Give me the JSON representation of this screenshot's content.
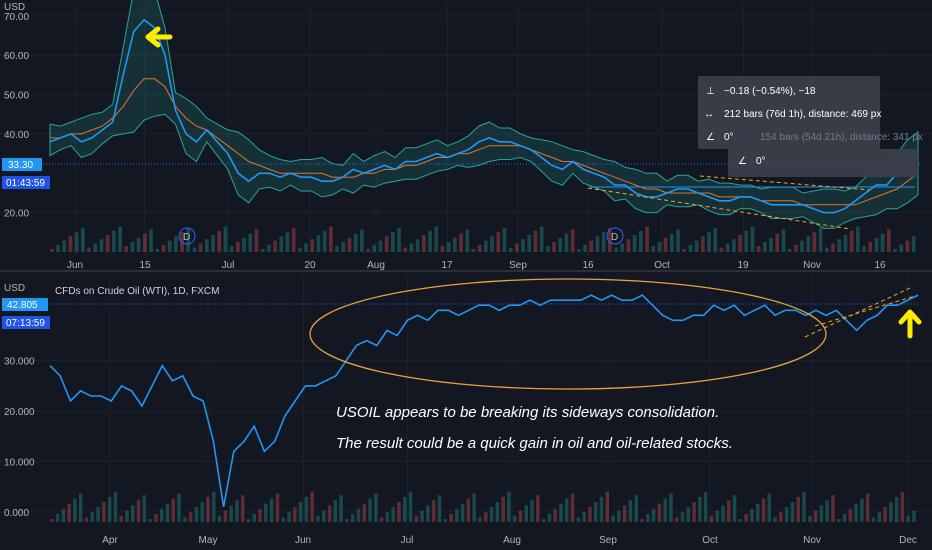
{
  "chart_data": [
    {
      "type": "line",
      "currency_label": "USD",
      "y_ticks": [
        "70.00",
        "60.00",
        "50.00",
        "40.00",
        "20.00"
      ],
      "ylim": [
        10,
        72
      ],
      "x_ticks": [
        "Jun",
        "15",
        "Jul",
        "20",
        "Aug",
        "17",
        "Sep",
        "16",
        "Oct",
        "19",
        "Nov",
        "16"
      ],
      "price_tag": "33.30",
      "countdown_tag": "01:43:59",
      "dividend_markers": [
        "D",
        "D"
      ],
      "series": [
        {
          "values": [
            38,
            39,
            40,
            38,
            39,
            41,
            43,
            55,
            66,
            69,
            67,
            60,
            46,
            40,
            38,
            41,
            38,
            35,
            30,
            28,
            30,
            30,
            29,
            30,
            29,
            29,
            28,
            28,
            29,
            31,
            30,
            31,
            32,
            31,
            33,
            33,
            34,
            35,
            34,
            35,
            36,
            38,
            39,
            38,
            38,
            37,
            36,
            34,
            32,
            31,
            33,
            31,
            30,
            29,
            27,
            27,
            25,
            24,
            24,
            25,
            26,
            26,
            25,
            24,
            23,
            23,
            24,
            24,
            23,
            22,
            22,
            22,
            22,
            21,
            20,
            20,
            21,
            23,
            25,
            27,
            27,
            30,
            33,
            35
          ]
        },
        {
          "values": [
            39,
            39,
            40,
            40,
            41,
            42,
            44,
            47,
            51,
            54,
            54,
            52,
            47,
            44,
            42,
            41,
            39,
            37,
            35,
            33,
            32,
            31,
            30,
            30,
            30,
            30,
            30,
            29,
            29,
            29,
            30,
            30,
            31,
            31,
            32,
            32,
            33,
            34,
            34,
            35,
            35,
            36,
            37,
            37,
            37,
            37,
            36,
            35,
            34,
            33,
            33,
            32,
            31,
            30,
            29,
            28,
            27,
            26,
            26,
            25,
            25,
            25,
            25,
            25,
            24,
            24,
            24,
            24,
            23,
            23,
            23,
            23,
            22,
            22,
            22,
            22,
            22,
            22,
            23,
            24,
            25,
            26,
            28,
            30
          ]
        }
      ],
      "annotations": {
        "measure_price": "−0.18 (−0.54%), −18",
        "measure_bars": "212 bars (76d 1h), distance: 469 px",
        "measure_angle": "0°",
        "measure_bars2": "154 bars (54d 21h), distance: 341 px",
        "measure_angle2": "0°"
      }
    },
    {
      "type": "line",
      "title": "CFDs on Crude Oil (WTI), 1D, FXCM",
      "currency_label": "USD",
      "y_ticks": [
        "30.000",
        "20.000",
        "10.000",
        "0.000"
      ],
      "ylim": [
        -2,
        46
      ],
      "x_ticks": [
        "Apr",
        "May",
        "Jun",
        "Jul",
        "Aug",
        "Sep",
        "Oct",
        "Nov",
        "Dec"
      ],
      "price_tag": "42.805",
      "countdown_tag": "07:13:59",
      "series": [
        {
          "values": [
            29,
            27,
            22,
            24,
            23,
            23,
            22,
            25,
            24,
            21,
            25,
            29,
            26,
            27,
            23,
            22,
            14,
            1,
            12,
            14,
            17,
            12,
            14,
            19,
            22,
            25,
            25,
            26,
            27,
            30,
            33,
            34,
            33,
            36,
            35,
            38,
            39,
            38,
            40,
            40,
            39,
            40,
            41,
            41,
            40,
            41,
            41,
            42,
            41,
            42,
            42,
            42,
            42,
            43,
            42,
            43,
            42,
            42,
            43,
            41,
            39,
            38,
            38,
            39,
            39,
            41,
            40,
            41,
            39,
            40,
            41,
            39,
            40,
            40,
            39,
            40,
            39,
            40,
            38,
            36,
            38,
            39,
            41,
            41,
            42,
            43
          ]
        }
      ],
      "annotations": {
        "line1": "USOIL appears to be breaking its sideways consolidation.",
        "line2": "The result could be a quick gain in oil and oil-related stocks."
      }
    }
  ]
}
